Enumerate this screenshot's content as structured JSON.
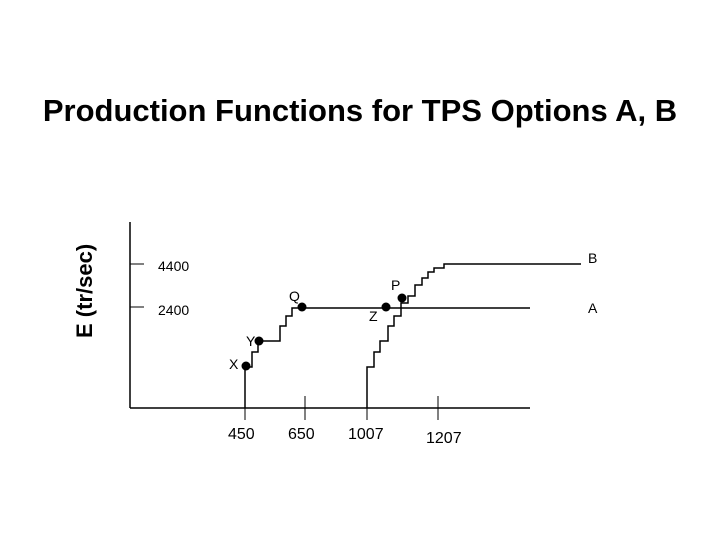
{
  "title": "Production Functions for TPS Options A, B",
  "y_axis_label": "E (tr/sec)",
  "x_ticks": [
    "450",
    "650",
    "1007",
    "1207"
  ],
  "y_ticks": [
    "4400",
    "2400"
  ],
  "curve_labels": {
    "A": "A",
    "B": "B"
  },
  "points": {
    "X": "X",
    "Y": "Y",
    "Q": "Q",
    "Z": "Z",
    "P": "P"
  },
  "colors": {
    "ink": "#000000",
    "background": "#ffffff"
  }
}
